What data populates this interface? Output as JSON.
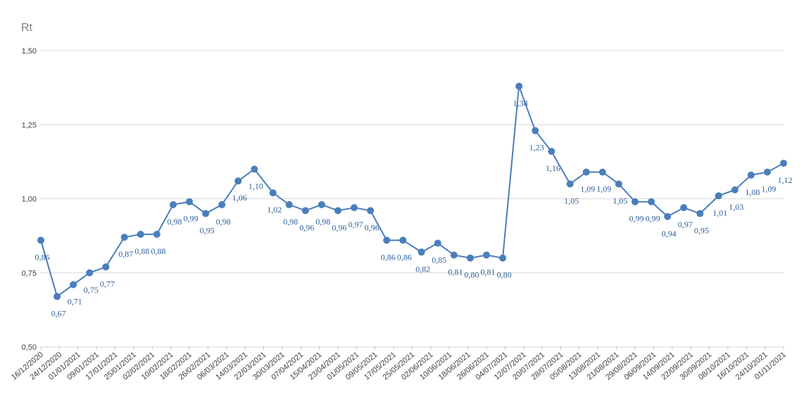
{
  "chart_data": {
    "type": "line",
    "y_label": "Rt",
    "x": [
      "16/12/2020",
      "23/12/2020",
      "30/12/2020",
      "06/01/2021",
      "13/01/2021",
      "21/01/2021",
      "28/01/2021",
      "04/02/2021",
      "11/02/2021",
      "18/02/2021",
      "25/02/2021",
      "04/03/2021",
      "11/03/2021",
      "18/03/2021",
      "26/03/2021",
      "02/04/2021",
      "09/04/2021",
      "16/04/2021",
      "23/04/2021",
      "30/04/2021",
      "07/05/2021",
      "14/05/2021",
      "21/05/2021",
      "29/05/2021",
      "05/06/2021",
      "12/06/2021",
      "19/06/2021",
      "26/06/2021",
      "03/07/2021",
      "10/07/2021",
      "17/07/2021",
      "24/07/2021",
      "01/08/2021",
      "08/08/2021",
      "15/08/2021",
      "22/08/2021",
      "29/08/2021",
      "05/09/2021",
      "12/09/2021",
      "19/09/2021",
      "26/09/2021",
      "04/10/2021",
      "11/10/2021",
      "18/10/2021",
      "25/10/2021",
      "01/11/2021"
    ],
    "series": [
      {
        "name": "Rt",
        "color": "#4a7ebb",
        "values": [
          0.86,
          0.67,
          0.71,
          0.75,
          0.77,
          0.87,
          0.88,
          0.88,
          0.98,
          0.99,
          0.95,
          0.98,
          1.06,
          1.1,
          1.02,
          0.98,
          0.96,
          0.98,
          0.96,
          0.97,
          0.96,
          0.86,
          0.86,
          0.82,
          0.85,
          0.81,
          0.8,
          0.81,
          0.8,
          1.38,
          1.23,
          1.16,
          1.05,
          1.09,
          1.09,
          1.05,
          0.99,
          0.99,
          0.94,
          0.97,
          0.95,
          1.01,
          1.03,
          1.08,
          1.09,
          1.12
        ],
        "value_labels": [
          "0,86",
          "0,67",
          "0,71",
          "0,75",
          "0,77",
          "0,87",
          "0,88",
          "0,88",
          "0,98",
          "0,99",
          "0,95",
          "0,98",
          "1,06",
          "1,10",
          "1,02",
          "0,98",
          "0,96",
          "0,98",
          "0,96",
          "0,97",
          "0,96",
          "0,86",
          "0,86",
          "0,82",
          "0,85",
          "0,81",
          "0,80",
          "0,81",
          "0,80",
          "1,38",
          "1,23",
          "1,16",
          "1,05",
          "1,09",
          "1,09",
          "1,05",
          "0,99",
          "0,99",
          "0,94",
          "0,97",
          "0,95",
          "1,01",
          "1,03",
          "1,08",
          "1,09",
          "1,12"
        ]
      }
    ],
    "xlim": [
      "16/12/2020",
      "01/11/2021"
    ],
    "xticks": [
      "16/12/2020",
      "24/12/2020",
      "01/01/2021",
      "09/01/2021",
      "17/01/2021",
      "25/01/2021",
      "02/02/2021",
      "10/02/2021",
      "18/02/2021",
      "26/02/2021",
      "06/03/2021",
      "14/03/2021",
      "22/03/2021",
      "30/03/2021",
      "07/04/2021",
      "15/04/2021",
      "23/04/2021",
      "01/05/2021",
      "09/05/2021",
      "17/05/2021",
      "25/05/2021",
      "02/06/2021",
      "10/06/2021",
      "18/06/2021",
      "26/06/2021",
      "04/07/2021",
      "12/07/2021",
      "20/07/2021",
      "28/07/2021",
      "05/08/2021",
      "13/08/2021",
      "21/08/2021",
      "29/08/2021",
      "06/09/2021",
      "14/09/2021",
      "22/09/2021",
      "30/09/2021",
      "08/10/2021",
      "16/10/2021",
      "24/10/2021",
      "01/11/2021"
    ],
    "ylim": [
      0.5,
      1.5
    ],
    "yticks": [
      {
        "value": 0.5,
        "label": "0,50"
      },
      {
        "value": 0.75,
        "label": "0,75"
      },
      {
        "value": 1.0,
        "label": "1,00"
      },
      {
        "value": 1.25,
        "label": "1,25"
      },
      {
        "value": 1.5,
        "label": "1,50"
      }
    ],
    "grid": true
  }
}
